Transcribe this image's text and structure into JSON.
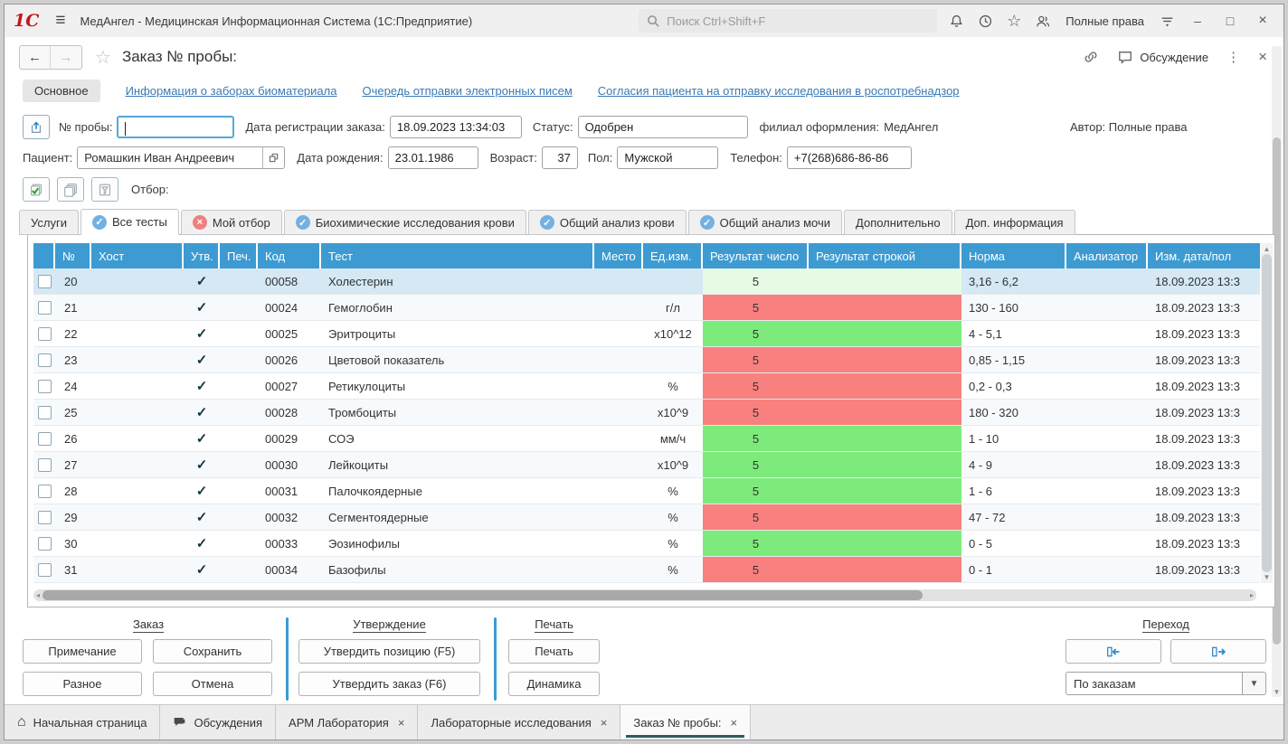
{
  "titlebar": {
    "title": "МедАнгел - Медицинская Информационная Система  (1С:Предприятие)",
    "search_placeholder": "Поиск Ctrl+Shift+F",
    "user_role": "Полные права",
    "minimize": "–",
    "maximize": "□",
    "close": "×"
  },
  "nav": {
    "back": "←",
    "forward": "→",
    "page_title": "Заказ № пробы:",
    "discussion_label": "Обсуждение",
    "more": "⋮",
    "close": "×"
  },
  "section_tabs": {
    "main_tab": "Основное",
    "links": [
      "Информация о заборах биоматериала",
      "Очередь отправки электронных писем",
      "Согласия пациента на отправку исследования в роспотребнадзор"
    ]
  },
  "form": {
    "sample_no_label": "№ пробы:",
    "sample_no_value": "",
    "reg_date_label": "Дата регистрации заказа:",
    "reg_date_value": "18.09.2023 13:34:03",
    "status_label": "Статус:",
    "status_value": "Одобрен",
    "branch_label": "филиал оформления:",
    "branch_value": "МедАнгел",
    "author_label": "Автор:",
    "author_value": "Полные права",
    "patient_label": "Пациент:",
    "patient_value": "Ромашкин Иван Андреевич",
    "birth_label": "Дата рождения:",
    "birth_value": "23.01.1986",
    "age_label": "Возраст:",
    "age_value": "37",
    "gender_label": "Пол:",
    "gender_value": "Мужской",
    "phone_label": "Телефон:",
    "phone_value": "+7(268)686-86-86",
    "filter_label": "Отбор:"
  },
  "test_tabs": [
    {
      "label": "Услуги",
      "icon": "none",
      "active": false
    },
    {
      "label": "Все тесты",
      "icon": "check",
      "active": true
    },
    {
      "label": "Мой отбор",
      "icon": "cross",
      "active": false
    },
    {
      "label": "Биохимические исследования крови",
      "icon": "check",
      "active": false
    },
    {
      "label": "Общий анализ крови",
      "icon": "check",
      "active": false
    },
    {
      "label": "Общий анализ мочи",
      "icon": "check",
      "active": false
    },
    {
      "label": "Дополнительно",
      "icon": "none",
      "active": false
    },
    {
      "label": "Доп. информация",
      "icon": "none",
      "active": false
    }
  ],
  "table": {
    "columns": [
      "",
      "№",
      "Хост",
      "Утв.",
      "Печ.",
      "Код",
      "Тест",
      "Место",
      "Ед.изм.",
      "Результат число",
      "Результат строкой",
      "Норма",
      "Анализатор",
      "Изм. дата/пол"
    ],
    "rows": [
      {
        "num": "20",
        "host": "",
        "approved": true,
        "print_mark": "",
        "code": "00058",
        "test": "Холестерин",
        "place": "",
        "unit": "",
        "result": "5",
        "result_str": "",
        "norm": "3,16 - 6,2",
        "analyzer": "",
        "date": "18.09.2023 13:3",
        "result_color": "pale",
        "selected": true
      },
      {
        "num": "21",
        "host": "",
        "approved": true,
        "print_mark": "",
        "code": "00024",
        "test": "Гемоглобин",
        "place": "",
        "unit": "г/л",
        "result": "5",
        "result_str": "",
        "norm": "130 - 160",
        "analyzer": "",
        "date": "18.09.2023 13:3",
        "result_color": "red",
        "selected": false
      },
      {
        "num": "22",
        "host": "",
        "approved": true,
        "print_mark": "",
        "code": "00025",
        "test": "Эритроциты",
        "place": "",
        "unit": "x10^12",
        "result": "5",
        "result_str": "",
        "norm": "4 - 5,1",
        "analyzer": "",
        "date": "18.09.2023 13:3",
        "result_color": "green",
        "selected": false
      },
      {
        "num": "23",
        "host": "",
        "approved": true,
        "print_mark": "",
        "code": "00026",
        "test": "Цветовой показатель",
        "place": "",
        "unit": "",
        "result": "5",
        "result_str": "",
        "norm": "0,85 - 1,15",
        "analyzer": "",
        "date": "18.09.2023 13:3",
        "result_color": "red",
        "selected": false
      },
      {
        "num": "24",
        "host": "",
        "approved": true,
        "print_mark": "",
        "code": "00027",
        "test": "Ретикулоциты",
        "place": "",
        "unit": "%",
        "result": "5",
        "result_str": "",
        "norm": "0,2 - 0,3",
        "analyzer": "",
        "date": "18.09.2023 13:3",
        "result_color": "red",
        "selected": false
      },
      {
        "num": "25",
        "host": "",
        "approved": true,
        "print_mark": "",
        "code": "00028",
        "test": "Тромбоциты",
        "place": "",
        "unit": "x10^9",
        "result": "5",
        "result_str": "",
        "norm": "180 - 320",
        "analyzer": "",
        "date": "18.09.2023 13:3",
        "result_color": "red",
        "selected": false
      },
      {
        "num": "26",
        "host": "",
        "approved": true,
        "print_mark": "",
        "code": "00029",
        "test": "СОЭ",
        "place": "",
        "unit": "мм/ч",
        "result": "5",
        "result_str": "",
        "norm": "1 - 10",
        "analyzer": "",
        "date": "18.09.2023 13:3",
        "result_color": "green",
        "selected": false
      },
      {
        "num": "27",
        "host": "",
        "approved": true,
        "print_mark": "",
        "code": "00030",
        "test": "Лейкоциты",
        "place": "",
        "unit": "x10^9",
        "result": "5",
        "result_str": "",
        "norm": "4 - 9",
        "analyzer": "",
        "date": "18.09.2023 13:3",
        "result_color": "green",
        "selected": false
      },
      {
        "num": "28",
        "host": "",
        "approved": true,
        "print_mark": "",
        "code": "00031",
        "test": "Палочкоядерные",
        "place": "",
        "unit": "%",
        "result": "5",
        "result_str": "",
        "norm": "1 - 6",
        "analyzer": "",
        "date": "18.09.2023 13:3",
        "result_color": "green",
        "selected": false
      },
      {
        "num": "29",
        "host": "",
        "approved": true,
        "print_mark": "",
        "code": "00032",
        "test": "Сегментоядерные",
        "place": "",
        "unit": "%",
        "result": "5",
        "result_str": "",
        "norm": "47 - 72",
        "analyzer": "",
        "date": "18.09.2023 13:3",
        "result_color": "red",
        "selected": false
      },
      {
        "num": "30",
        "host": "",
        "approved": true,
        "print_mark": "",
        "code": "00033",
        "test": "Эозинофилы",
        "place": "",
        "unit": "%",
        "result": "5",
        "result_str": "",
        "norm": "0 - 5",
        "analyzer": "",
        "date": "18.09.2023 13:3",
        "result_color": "green",
        "selected": false
      },
      {
        "num": "31",
        "host": "",
        "approved": true,
        "print_mark": "",
        "code": "00034",
        "test": "Базофилы",
        "place": "",
        "unit": "%",
        "result": "5",
        "result_str": "",
        "norm": "0 - 1",
        "analyzer": "",
        "date": "18.09.2023 13:3",
        "result_color": "red",
        "selected": false
      }
    ]
  },
  "actions": {
    "order_group": {
      "title": "Заказ",
      "buttons": [
        "Примечание",
        "Сохранить",
        "Разное",
        "Отмена"
      ]
    },
    "approve_group": {
      "title": "Утверждение",
      "buttons": [
        "Утвердить позицию (F5)",
        "Утвердить заказ (F6)"
      ]
    },
    "print_group": {
      "title": "Печать",
      "buttons": [
        "Печать",
        "Динамика"
      ]
    },
    "trans_group": {
      "title": "Переход",
      "dropdown_value": "По заказам"
    }
  },
  "taskbar": [
    {
      "label": "Начальная страница",
      "icon": "home",
      "closable": false,
      "active": false
    },
    {
      "label": "Обсуждения",
      "icon": "chat",
      "closable": false,
      "active": false
    },
    {
      "label": "АРМ Лаборатория",
      "icon": "none",
      "closable": true,
      "active": false
    },
    {
      "label": "Лабораторные исследования",
      "icon": "none",
      "closable": true,
      "active": false
    },
    {
      "label": "Заказ № пробы:",
      "icon": "none",
      "closable": true,
      "active": true
    }
  ],
  "colors": {
    "header_blue": "#3d9bd2",
    "result_red": "#f8807e",
    "result_green": "#7deb7c",
    "result_pale": "#e7fae4",
    "selected_row": "#d5e8f4",
    "link": "#3a7ab6",
    "accent_blue": "#3a9bd5",
    "tab_check_blue": "#72b1e3",
    "tab_cross_red": "#ee8080",
    "active_tab_underline": "#2d5c60"
  }
}
